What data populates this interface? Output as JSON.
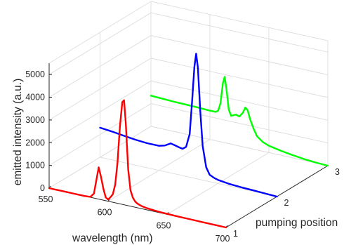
{
  "chart_data": {
    "type": "line",
    "view": "3d-waterfall",
    "xlabel": "wavelength (nm)",
    "ylabel": "pumping position",
    "zlabel": "emitted intensity (a.u.)",
    "xlim": [
      550,
      700
    ],
    "ylim": [
      1,
      3
    ],
    "zlim": [
      0,
      5500
    ],
    "x_ticks": [
      "550",
      "600",
      "650",
      "700"
    ],
    "y_ticks": [
      "1",
      "2",
      "3"
    ],
    "z_ticks": [
      "0",
      "1000",
      "2000",
      "3000",
      "4000",
      "5000"
    ],
    "grid": true,
    "series": [
      {
        "pumping_position": 1,
        "color": "#ff0000",
        "points": [
          [
            550,
            0
          ],
          [
            555,
            0
          ],
          [
            560,
            0
          ],
          [
            565,
            0
          ],
          [
            570,
            0
          ],
          [
            575,
            0
          ],
          [
            580,
            0
          ],
          [
            585,
            20
          ],
          [
            588,
            200
          ],
          [
            590,
            800
          ],
          [
            592,
            1400
          ],
          [
            594,
            1000
          ],
          [
            596,
            500
          ],
          [
            598,
            150
          ],
          [
            600,
            80
          ],
          [
            602,
            200
          ],
          [
            604,
            350
          ],
          [
            606,
            800
          ],
          [
            608,
            1800
          ],
          [
            610,
            3400
          ],
          [
            612,
            4500
          ],
          [
            613.5,
            4600
          ],
          [
            615,
            3600
          ],
          [
            617,
            1600
          ],
          [
            619,
            700
          ],
          [
            621,
            400
          ],
          [
            623,
            250
          ],
          [
            625,
            180
          ],
          [
            628,
            120
          ],
          [
            632,
            80
          ],
          [
            636,
            60
          ],
          [
            640,
            45
          ],
          [
            645,
            30
          ],
          [
            650,
            22
          ],
          [
            655,
            15
          ],
          [
            660,
            12
          ],
          [
            670,
            8
          ],
          [
            680,
            5
          ],
          [
            690,
            3
          ],
          [
            700,
            0
          ]
        ]
      },
      {
        "pumping_position": 2,
        "color": "#0000ff",
        "points": [
          [
            550,
            1300
          ],
          [
            560,
            1250
          ],
          [
            570,
            1180
          ],
          [
            580,
            1120
          ],
          [
            590,
            1080
          ],
          [
            600,
            1080
          ],
          [
            605,
            1150
          ],
          [
            610,
            1300
          ],
          [
            614,
            1250
          ],
          [
            618,
            1200
          ],
          [
            620,
            1180
          ],
          [
            623,
            1300
          ],
          [
            626,
            1900
          ],
          [
            628,
            3300
          ],
          [
            630,
            4900
          ],
          [
            631.5,
            5500
          ],
          [
            633,
            4900
          ],
          [
            635,
            3000
          ],
          [
            637,
            1500
          ],
          [
            640,
            600
          ],
          [
            643,
            300
          ],
          [
            647,
            200
          ],
          [
            650,
            160
          ],
          [
            660,
            90
          ],
          [
            670,
            60
          ],
          [
            680,
            40
          ],
          [
            690,
            20
          ],
          [
            700,
            0
          ]
        ]
      },
      {
        "pumping_position": 3,
        "color": "#00ff00",
        "points": [
          [
            550,
            1350
          ],
          [
            560,
            1330
          ],
          [
            570,
            1310
          ],
          [
            580,
            1300
          ],
          [
            590,
            1290
          ],
          [
            600,
            1270
          ],
          [
            605,
            1270
          ],
          [
            607,
            1350
          ],
          [
            609,
            1700
          ],
          [
            611,
            2600
          ],
          [
            612.5,
            2900
          ],
          [
            614,
            2400
          ],
          [
            616,
            1500
          ],
          [
            618,
            1250
          ],
          [
            620,
            1300
          ],
          [
            622,
            1350
          ],
          [
            625,
            1300
          ],
          [
            628,
            1500
          ],
          [
            630,
            1750
          ],
          [
            632,
            1650
          ],
          [
            634,
            1300
          ],
          [
            637,
            900
          ],
          [
            640,
            600
          ],
          [
            645,
            400
          ],
          [
            650,
            300
          ],
          [
            660,
            200
          ],
          [
            670,
            120
          ],
          [
            680,
            60
          ],
          [
            690,
            20
          ],
          [
            700,
            0
          ]
        ]
      }
    ]
  }
}
